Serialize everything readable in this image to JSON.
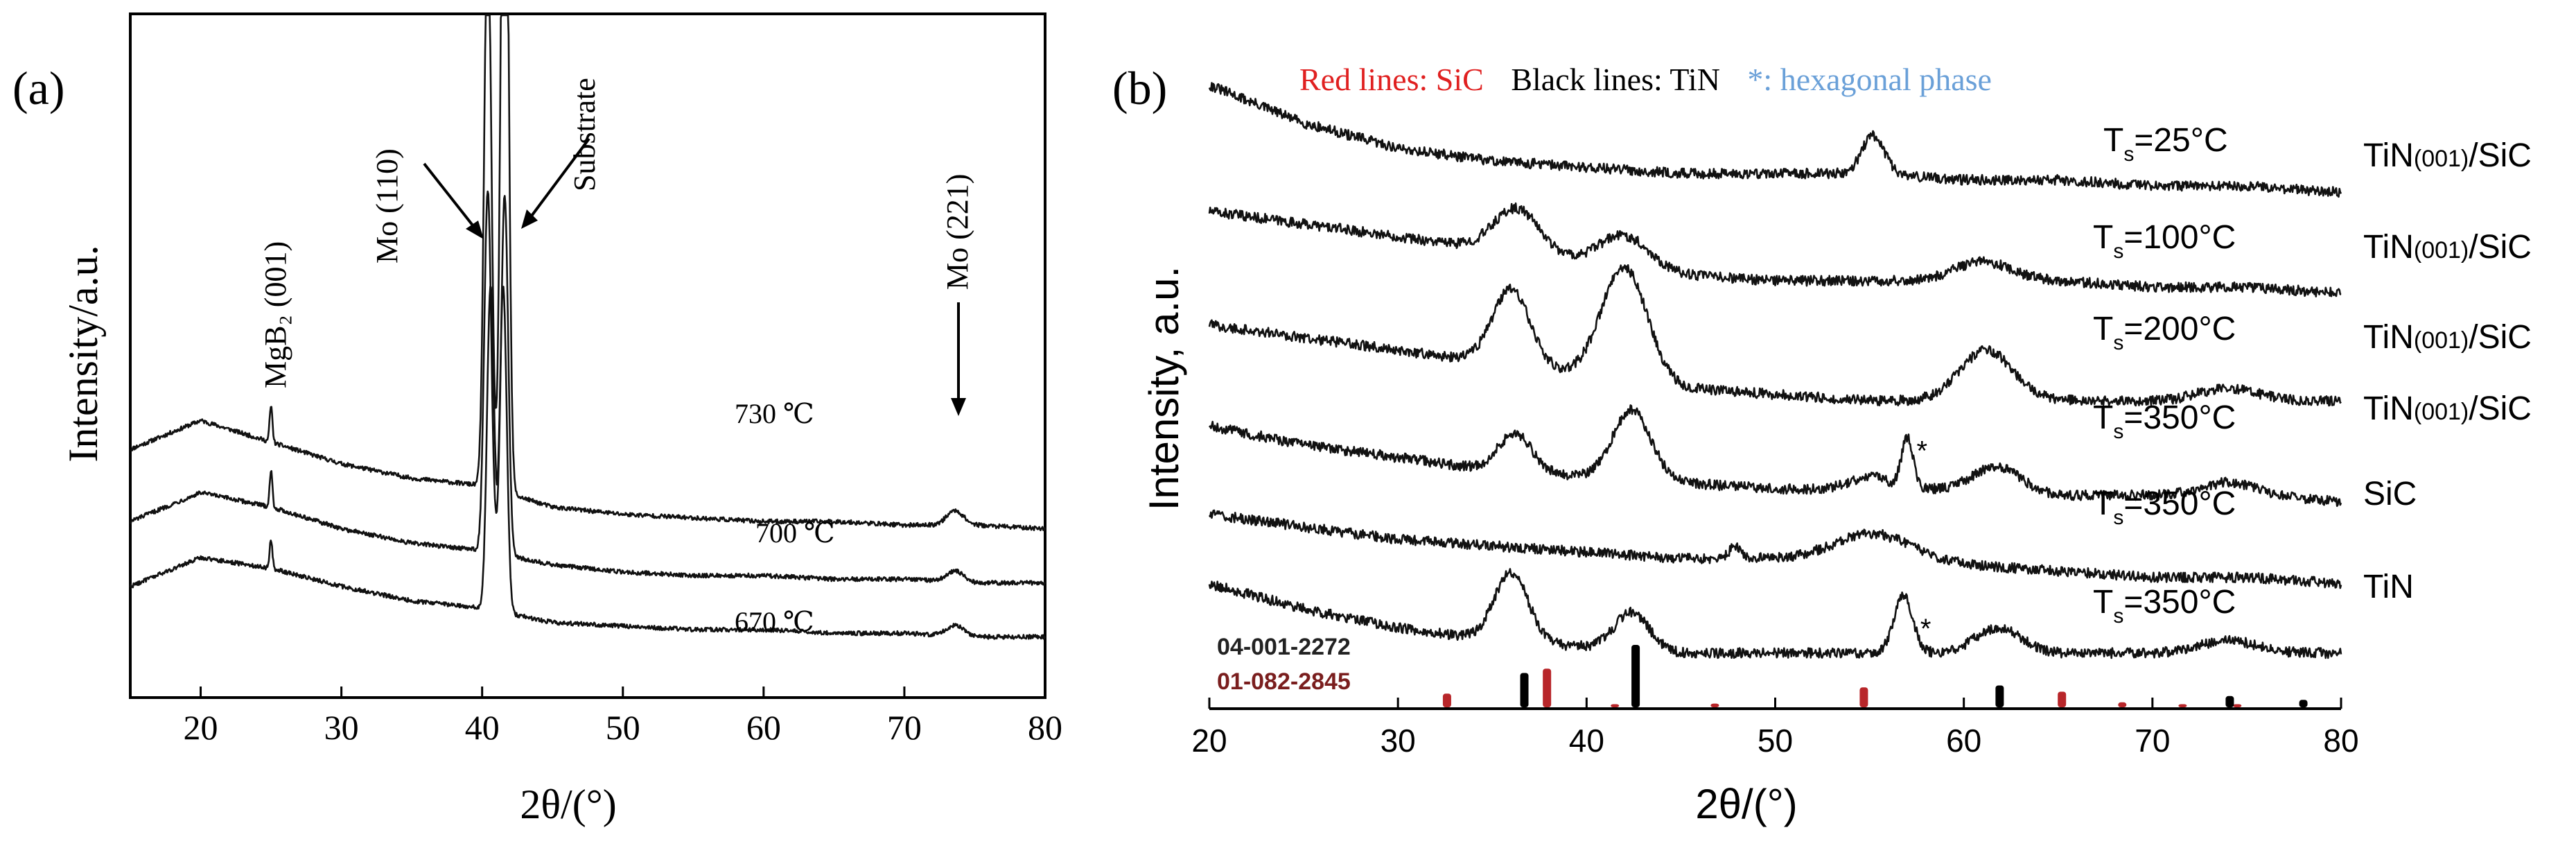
{
  "colors": {
    "axis": "#000000",
    "curve": "#111111",
    "ref_red": "#b8262a",
    "ref_black": "#000000",
    "legend_red": "#e02020",
    "legend_blue": "#6aa0d8",
    "ref_code_red": "#7a1e1e"
  },
  "chart_data": [
    {
      "panel_label": "(a)",
      "type": "line",
      "title": "",
      "xlabel": "2θ/(°)",
      "ylabel": "Intensity/a.u.",
      "xlim": [
        15,
        80
      ],
      "xticks": [
        "20",
        "30",
        "40",
        "50",
        "60",
        "70",
        "80"
      ],
      "grid": false,
      "series": [
        {
          "name": "730 ℃",
          "label": "730 ℃",
          "points": [
            [
              15,
              0.6
            ],
            [
              20,
              0.68
            ],
            [
              25,
              0.62
            ],
            [
              30,
              0.56
            ],
            [
              35,
              0.52
            ],
            [
              40,
              0.5
            ],
            [
              45,
              0.44
            ],
            [
              50,
              0.42
            ],
            [
              55,
              0.41
            ],
            [
              60,
              0.4
            ],
            [
              65,
              0.4
            ],
            [
              70,
              0.39
            ],
            [
              75,
              0.39
            ],
            [
              80,
              0.38
            ]
          ],
          "peaks": [
            {
              "x": 25.0,
              "h": 0.1,
              "w": 0.1
            },
            {
              "x": 40.4,
              "h": 1.6,
              "w": 0.25
            },
            {
              "x": 41.6,
              "h": 2.4,
              "w": 0.25
            },
            {
              "x": 73.6,
              "h": 0.04,
              "w": 0.6
            }
          ]
        },
        {
          "name": "700 ℃",
          "label": "700 ℃",
          "points": [
            [
              15,
              0.4
            ],
            [
              20,
              0.48
            ],
            [
              25,
              0.44
            ],
            [
              30,
              0.38
            ],
            [
              35,
              0.34
            ],
            [
              40,
              0.32
            ],
            [
              45,
              0.28
            ],
            [
              50,
              0.26
            ],
            [
              55,
              0.25
            ],
            [
              60,
              0.25
            ],
            [
              65,
              0.24
            ],
            [
              70,
              0.24
            ],
            [
              75,
              0.23
            ],
            [
              80,
              0.23
            ]
          ],
          "peaks": [
            {
              "x": 25.0,
              "h": 0.1,
              "w": 0.1
            },
            {
              "x": 40.4,
              "h": 1.0,
              "w": 0.25
            },
            {
              "x": 41.6,
              "h": 1.0,
              "w": 0.25
            },
            {
              "x": 73.6,
              "h": 0.03,
              "w": 0.6
            }
          ]
        },
        {
          "name": "670 ℃",
          "label": "670 ℃",
          "points": [
            [
              15,
              0.22
            ],
            [
              20,
              0.3
            ],
            [
              25,
              0.27
            ],
            [
              30,
              0.22
            ],
            [
              35,
              0.18
            ],
            [
              40,
              0.16
            ],
            [
              45,
              0.12
            ],
            [
              50,
              0.11
            ],
            [
              55,
              0.1
            ],
            [
              60,
              0.1
            ],
            [
              65,
              0.09
            ],
            [
              70,
              0.09
            ],
            [
              75,
              0.08
            ],
            [
              80,
              0.08
            ]
          ],
          "peaks": [
            {
              "x": 25.0,
              "h": 0.08,
              "w": 0.1
            },
            {
              "x": 40.6,
              "h": 0.9,
              "w": 0.25
            },
            {
              "x": 41.5,
              "h": 0.9,
              "w": 0.25
            },
            {
              "x": 73.6,
              "h": 0.03,
              "w": 0.6
            }
          ]
        }
      ],
      "annotations": [
        {
          "text": "MgB₂ (001)",
          "x": 25
        },
        {
          "text": "Mo (110)",
          "x": 40.3
        },
        {
          "text": "Substrate",
          "x": 41.6
        },
        {
          "text": "Mo (221)",
          "x": 73.6
        }
      ]
    },
    {
      "panel_label": "(b)",
      "type": "line",
      "title": "",
      "xlabel": "2θ/(°)",
      "ylabel": "Intensity, a.u.",
      "xlim": [
        20,
        80
      ],
      "xticks": [
        "20",
        "30",
        "40",
        "50",
        "60",
        "70",
        "80"
      ],
      "grid": false,
      "legend": {
        "red": "Red lines: SiC",
        "black": "Black lines: TiN",
        "star": "*: hexagonal phase"
      },
      "series": [
        {
          "name": "TiN(001)/SiC Ts=25°C",
          "temp_prefix": "T",
          "temp_sub": "s",
          "temp_value": "=25°C",
          "sample_prefix": "TiN",
          "sample_paren": "(001)",
          "sample_suffix": "/SiC",
          "points": [
            [
              20,
              0.92
            ],
            [
              25,
              0.86
            ],
            [
              30,
              0.82
            ],
            [
              35,
              0.8
            ],
            [
              40,
              0.79
            ],
            [
              45,
              0.78
            ],
            [
              50,
              0.78
            ],
            [
              55,
              0.78
            ],
            [
              60,
              0.77
            ],
            [
              65,
              0.77
            ],
            [
              70,
              0.76
            ],
            [
              75,
              0.76
            ],
            [
              80,
              0.75
            ]
          ],
          "peaks": [
            {
              "x": 55.2,
              "h": 0.06,
              "w": 0.6
            }
          ]
        },
        {
          "name": "TiN(001)/SiC Ts=100°C",
          "temp_prefix": "T",
          "temp_sub": "s",
          "temp_value": "=100°C",
          "sample_prefix": "TiN",
          "sample_paren": "(001)",
          "sample_suffix": "/SiC",
          "points": [
            [
              20,
              0.72
            ],
            [
              25,
              0.7
            ],
            [
              30,
              0.68
            ],
            [
              35,
              0.66
            ],
            [
              40,
              0.64
            ],
            [
              45,
              0.62
            ],
            [
              50,
              0.61
            ],
            [
              55,
              0.61
            ],
            [
              60,
              0.61
            ],
            [
              65,
              0.61
            ],
            [
              70,
              0.6
            ],
            [
              75,
              0.6
            ],
            [
              80,
              0.59
            ]
          ],
          "peaks": [
            {
              "x": 36.3,
              "h": 0.07,
              "w": 1.2
            },
            {
              "x": 42.0,
              "h": 0.05,
              "w": 1.3
            },
            {
              "x": 61.0,
              "h": 0.03,
              "w": 1.5
            }
          ]
        },
        {
          "name": "TiN(001)/SiC Ts=200°C",
          "temp_prefix": "T",
          "temp_sub": "s",
          "temp_value": "=200°C",
          "sample_prefix": "TiN",
          "sample_paren": "(001)",
          "sample_suffix": "/SiC",
          "points": [
            [
              20,
              0.54
            ],
            [
              25,
              0.52
            ],
            [
              30,
              0.5
            ],
            [
              35,
              0.48
            ],
            [
              40,
              0.46
            ],
            [
              45,
              0.44
            ],
            [
              50,
              0.43
            ],
            [
              55,
              0.42
            ],
            [
              60,
              0.42
            ],
            [
              65,
              0.42
            ],
            [
              70,
              0.42
            ],
            [
              75,
              0.42
            ],
            [
              80,
              0.42
            ]
          ],
          "peaks": [
            {
              "x": 36.0,
              "h": 0.12,
              "w": 1.0
            },
            {
              "x": 42.0,
              "h": 0.18,
              "w": 1.2
            },
            {
              "x": 61.2,
              "h": 0.08,
              "w": 1.4
            },
            {
              "x": 74.0,
              "h": 0.02,
              "w": 1.5
            }
          ]
        },
        {
          "name": "TiN(001)/SiC Ts=350°C",
          "temp_prefix": "T",
          "temp_sub": "s",
          "temp_value": "=350°C",
          "sample_prefix": "TiN",
          "sample_paren": "(001)",
          "sample_suffix": "/SiC",
          "points": [
            [
              20,
              0.38
            ],
            [
              25,
              0.35
            ],
            [
              30,
              0.33
            ],
            [
              35,
              0.31
            ],
            [
              40,
              0.3
            ],
            [
              45,
              0.29
            ],
            [
              50,
              0.28
            ],
            [
              55,
              0.28
            ],
            [
              60,
              0.28
            ],
            [
              65,
              0.27
            ],
            [
              70,
              0.27
            ],
            [
              75,
              0.27
            ],
            [
              80,
              0.26
            ]
          ],
          "peaks": [
            {
              "x": 36.2,
              "h": 0.06,
              "w": 0.9
            },
            {
              "x": 42.4,
              "h": 0.11,
              "w": 1.0
            },
            {
              "x": 55.0,
              "h": 0.02,
              "w": 1.0
            },
            {
              "x": 57.0,
              "h": 0.08,
              "w": 0.3
            },
            {
              "x": 61.8,
              "h": 0.04,
              "w": 1.2
            },
            {
              "x": 74.0,
              "h": 0.02,
              "w": 1.5
            }
          ],
          "star_x": 57.2
        },
        {
          "name": "SiC Ts=350°C",
          "temp_prefix": "T",
          "temp_sub": "s",
          "temp_value": "=350°C",
          "sample_prefix": "SiC",
          "sample_paren": "",
          "sample_suffix": "",
          "points": [
            [
              20,
              0.24
            ],
            [
              25,
              0.22
            ],
            [
              30,
              0.2
            ],
            [
              35,
              0.19
            ],
            [
              40,
              0.18
            ],
            [
              45,
              0.17
            ],
            [
              50,
              0.17
            ],
            [
              55,
              0.17
            ],
            [
              60,
              0.16
            ],
            [
              65,
              0.15
            ],
            [
              70,
              0.14
            ],
            [
              75,
              0.14
            ],
            [
              80,
              0.13
            ]
          ],
          "peaks": [
            {
              "x": 47.9,
              "h": 0.02,
              "w": 0.3
            },
            {
              "x": 55.2,
              "h": 0.04,
              "w": 2.0
            }
          ]
        },
        {
          "name": "TiN Ts=350°C",
          "temp_prefix": "T",
          "temp_sub": "s",
          "temp_value": "=350°C",
          "sample_prefix": "TiN",
          "sample_paren": "",
          "sample_suffix": "",
          "points": [
            [
              20,
              0.13
            ],
            [
              25,
              0.09
            ],
            [
              30,
              0.06
            ],
            [
              35,
              0.04
            ],
            [
              40,
              0.03
            ],
            [
              45,
              0.02
            ],
            [
              50,
              0.02
            ],
            [
              55,
              0.02
            ],
            [
              60,
              0.02
            ],
            [
              65,
              0.02
            ],
            [
              70,
              0.02
            ],
            [
              75,
              0.02
            ],
            [
              80,
              0.02
            ]
          ],
          "peaks": [
            {
              "x": 36.0,
              "h": 0.11,
              "w": 0.9
            },
            {
              "x": 42.4,
              "h": 0.06,
              "w": 0.9
            },
            {
              "x": 56.8,
              "h": 0.09,
              "w": 0.5
            },
            {
              "x": 61.8,
              "h": 0.04,
              "w": 1.2
            },
            {
              "x": 74.0,
              "h": 0.02,
              "w": 1.5
            }
          ],
          "star_x": 57.4
        }
      ],
      "reference": {
        "black_label": "04-001-2272",
        "red_label": "01-082-2845",
        "black_lines": [
          [
            36.7,
            0.55
          ],
          [
            42.6,
            1.0
          ],
          [
            61.9,
            0.35
          ],
          [
            74.1,
            0.18
          ],
          [
            78.0,
            0.12
          ]
        ],
        "red_lines": [
          [
            32.6,
            0.22
          ],
          [
            37.9,
            0.62
          ],
          [
            41.5,
            0.05
          ],
          [
            46.8,
            0.06
          ],
          [
            54.7,
            0.32
          ],
          [
            65.2,
            0.25
          ],
          [
            68.4,
            0.08
          ],
          [
            71.6,
            0.05
          ],
          [
            74.5,
            0.05
          ]
        ]
      }
    }
  ]
}
